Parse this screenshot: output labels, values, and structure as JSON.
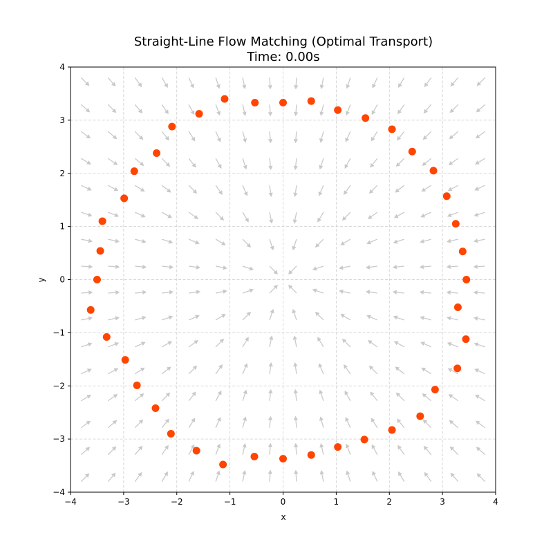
{
  "chart_data": {
    "type": "scatter",
    "title": "Straight-Line Flow Matching (Optimal Transport)",
    "subtitle": "Time: 0.00s",
    "xlabel": "x",
    "ylabel": "y",
    "xlim": [
      -4,
      4
    ],
    "ylim": [
      -4,
      4
    ],
    "xticks": [
      -4,
      -3,
      -2,
      -1,
      0,
      1,
      2,
      3,
      4
    ],
    "yticks": [
      -4,
      -3,
      -2,
      -1,
      0,
      1,
      2,
      3,
      4
    ],
    "xtick_labels": [
      "−4",
      "−3",
      "−2",
      "−1",
      "0",
      "1",
      "2",
      "3",
      "4"
    ],
    "ytick_labels": [
      "−4",
      "−3",
      "−2",
      "−1",
      "0",
      "1",
      "2",
      "3",
      "4"
    ],
    "grid": true,
    "point_color": "#ff4500",
    "arrow_color": "#c9c9c9",
    "vector_field": {
      "kind": "toward-origin",
      "x_range": [
        -3.8,
        3.8
      ],
      "y_range": [
        -3.8,
        3.8
      ],
      "count": 16
    },
    "points": [
      [
        3.45,
        0.0
      ],
      [
        3.38,
        0.53
      ],
      [
        3.25,
        1.05
      ],
      [
        3.08,
        1.57
      ],
      [
        2.83,
        2.05
      ],
      [
        2.43,
        2.41
      ],
      [
        2.05,
        2.83
      ],
      [
        1.55,
        3.04
      ],
      [
        1.03,
        3.19
      ],
      [
        0.53,
        3.36
      ],
      [
        0.0,
        3.33
      ],
      [
        -0.53,
        3.33
      ],
      [
        -1.1,
        3.4
      ],
      [
        -1.58,
        3.12
      ],
      [
        -2.09,
        2.88
      ],
      [
        -2.38,
        2.38
      ],
      [
        -2.8,
        2.04
      ],
      [
        -2.99,
        1.53
      ],
      [
        -3.4,
        1.1
      ],
      [
        -3.44,
        0.54
      ],
      [
        -3.5,
        0.0
      ],
      [
        -3.62,
        -0.57
      ],
      [
        -3.32,
        -1.08
      ],
      [
        -2.97,
        -1.51
      ],
      [
        -2.75,
        -1.99
      ],
      [
        -2.4,
        -2.42
      ],
      [
        -2.11,
        -2.9
      ],
      [
        -1.63,
        -3.22
      ],
      [
        -1.13,
        -3.48
      ],
      [
        -0.54,
        -3.33
      ],
      [
        0.0,
        -3.37
      ],
      [
        0.53,
        -3.3
      ],
      [
        1.03,
        -3.15
      ],
      [
        1.53,
        -3.01
      ],
      [
        2.05,
        -2.83
      ],
      [
        2.58,
        -2.57
      ],
      [
        2.86,
        -2.07
      ],
      [
        3.28,
        -1.67
      ],
      [
        3.44,
        -1.12
      ],
      [
        3.29,
        -0.52
      ]
    ]
  }
}
